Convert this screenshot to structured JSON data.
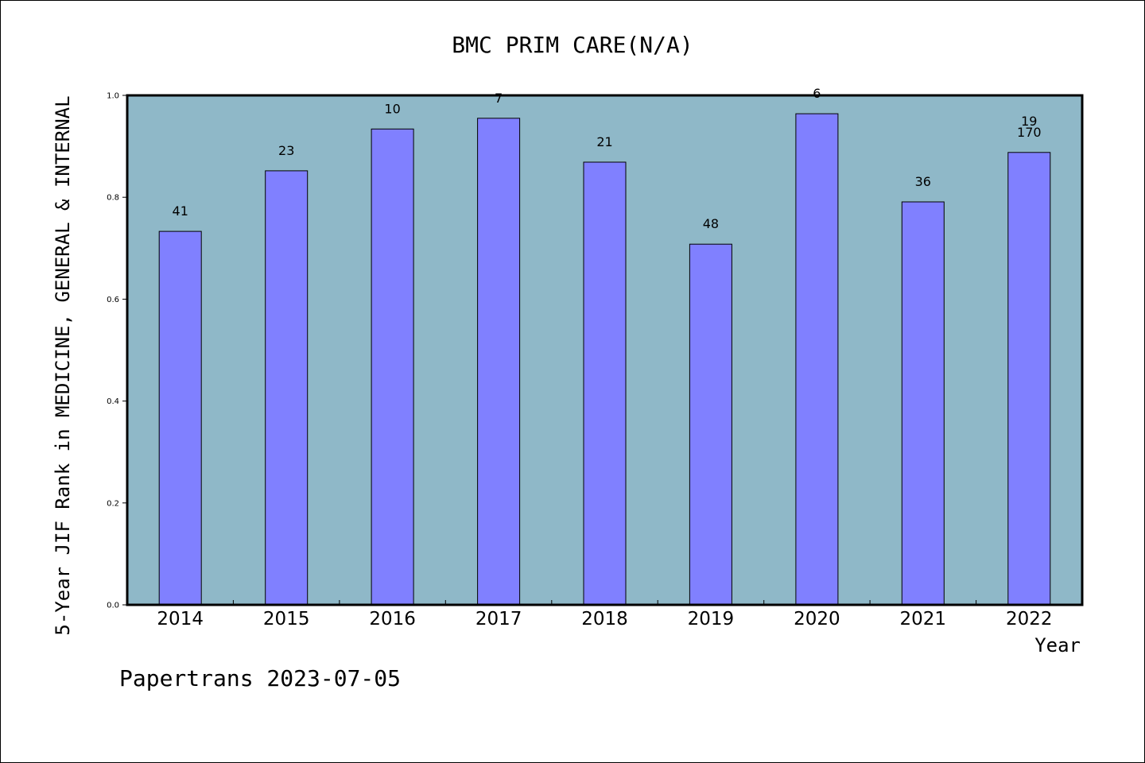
{
  "chart_data": {
    "type": "bar",
    "title": "BMC PRIM CARE(N/A)",
    "ylabel": "5-Year JIF Rank in MEDICINE, GENERAL & INTERNAL",
    "xlabel": "Year",
    "categories": [
      "2014",
      "2015",
      "2016",
      "2017",
      "2018",
      "2019",
      "2020",
      "2021",
      "2022"
    ],
    "values": [
      0.733,
      0.852,
      0.934,
      0.955,
      0.869,
      0.708,
      0.964,
      0.791,
      0.888
    ],
    "data_labels": [
      "41",
      "23",
      "10",
      "7",
      "21",
      "48",
      "6",
      "36",
      "170"
    ],
    "extra_labels": [
      {
        "category": "2022",
        "text": "19"
      }
    ],
    "ylim": [
      0.0,
      1.0
    ],
    "yticks": [
      "0.0",
      "0.2",
      "0.4",
      "0.6",
      "0.8",
      "1.0"
    ],
    "grid": false,
    "legend": "none",
    "colors": {
      "plot_background": "#8fb8c8",
      "bar_fill": "#8080ff",
      "bar_stroke": "#000000"
    }
  },
  "footer": "Papertrans 2023-07-05"
}
